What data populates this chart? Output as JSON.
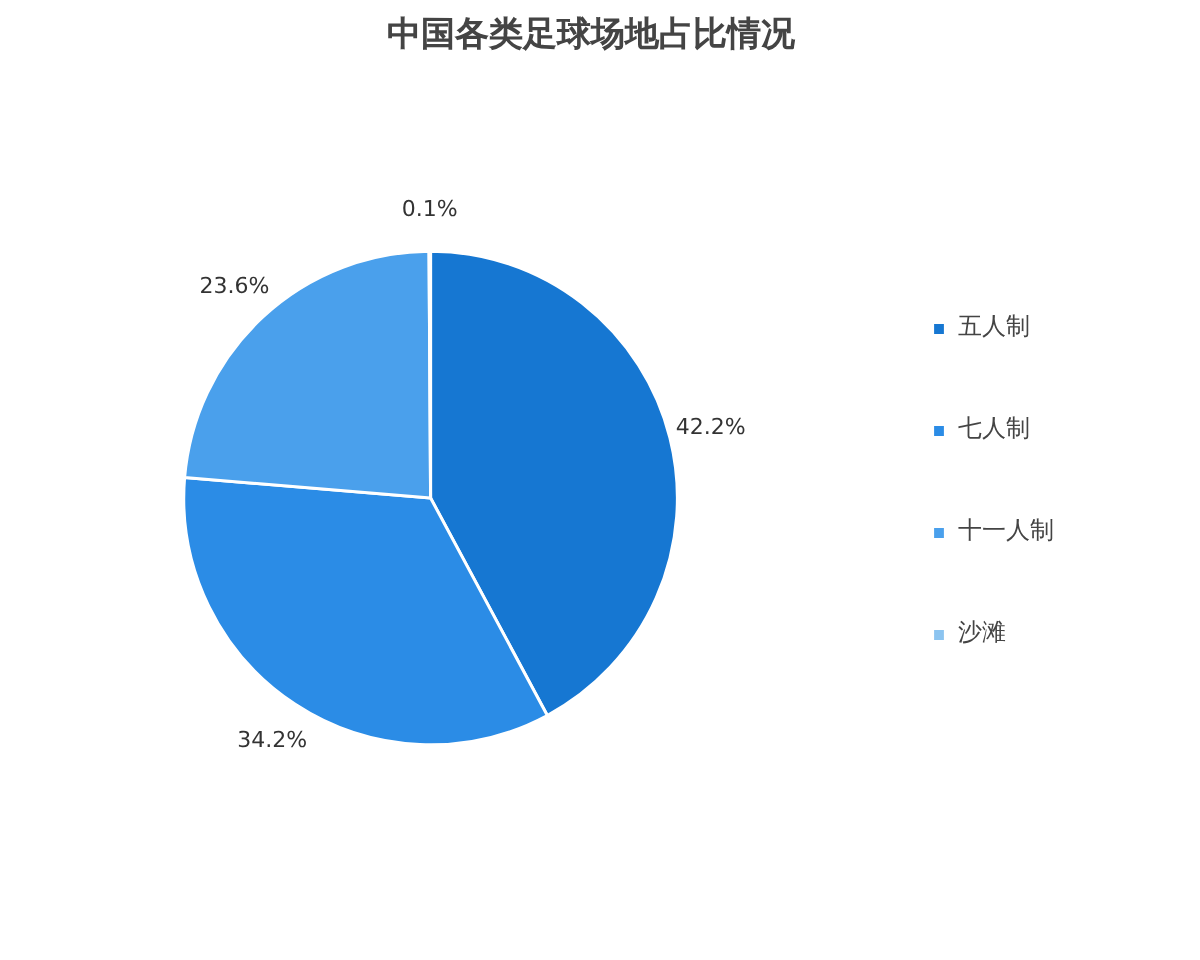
{
  "chart_data": {
    "type": "pie",
    "title": "中国各类足球场地占比情况",
    "categories": [
      "五人制",
      "七人制",
      "十一人制",
      "沙滩"
    ],
    "values": [
      42.2,
      34.2,
      23.6,
      0.1
    ],
    "value_labels": [
      "42.2%",
      "34.2%",
      "23.6%",
      "0.1%"
    ],
    "colors": [
      "#1677d2",
      "#2b8ce6",
      "#4aa0ec",
      "#8cc4f0"
    ],
    "legend": "right"
  }
}
